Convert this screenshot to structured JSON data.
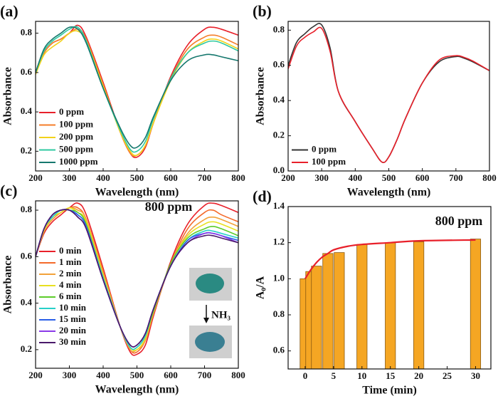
{
  "chart_data": [
    {
      "type": "line",
      "panel_label": "(a)",
      "x_label": "Wavelength (nm)",
      "y_label": "Absorbance",
      "xlim": [
        200,
        800
      ],
      "xticks": [
        200,
        300,
        400,
        500,
        600,
        700,
        800
      ],
      "ylim": [
        0.1,
        0.86
      ],
      "yticks": [
        0.2,
        0.4,
        0.6,
        0.8
      ],
      "legend": "lower left",
      "x": [
        200,
        225,
        250,
        275,
        300,
        325,
        350,
        400,
        450,
        480,
        500,
        525,
        550,
        600,
        650,
        700,
        725,
        750,
        800
      ],
      "series": [
        {
          "name": "0 ppm",
          "color": "#e8202a",
          "values": [
            0.6,
            0.7,
            0.75,
            0.77,
            0.8,
            0.84,
            0.78,
            0.55,
            0.3,
            0.19,
            0.17,
            0.22,
            0.35,
            0.58,
            0.74,
            0.82,
            0.83,
            0.82,
            0.79
          ]
        },
        {
          "name": "100 ppm",
          "color": "#f47d2a",
          "values": [
            0.6,
            0.7,
            0.75,
            0.77,
            0.8,
            0.82,
            0.77,
            0.54,
            0.3,
            0.19,
            0.18,
            0.23,
            0.35,
            0.57,
            0.72,
            0.78,
            0.79,
            0.78,
            0.74
          ]
        },
        {
          "name": "200 ppm",
          "color": "#f2d21b",
          "values": [
            0.59,
            0.69,
            0.73,
            0.76,
            0.8,
            0.81,
            0.76,
            0.53,
            0.3,
            0.2,
            0.18,
            0.23,
            0.35,
            0.56,
            0.7,
            0.76,
            0.77,
            0.76,
            0.72
          ]
        },
        {
          "name": "500 ppm",
          "color": "#2fc9a0",
          "values": [
            0.6,
            0.71,
            0.76,
            0.79,
            0.82,
            0.83,
            0.76,
            0.52,
            0.31,
            0.21,
            0.2,
            0.25,
            0.37,
            0.57,
            0.7,
            0.75,
            0.76,
            0.75,
            0.71
          ]
        },
        {
          "name": "1000 ppm",
          "color": "#16786e",
          "values": [
            0.6,
            0.72,
            0.77,
            0.8,
            0.83,
            0.82,
            0.75,
            0.52,
            0.32,
            0.23,
            0.22,
            0.27,
            0.38,
            0.56,
            0.66,
            0.69,
            0.69,
            0.68,
            0.66
          ]
        }
      ]
    },
    {
      "type": "line",
      "panel_label": "(b)",
      "x_label": "Wavelength (nm)",
      "y_label": "Absorbance",
      "xlim": [
        200,
        800
      ],
      "xticks": [
        200,
        300,
        400,
        500,
        600,
        700,
        800
      ],
      "ylim": [
        0,
        0.85
      ],
      "yticks": [
        {
          "value": 0,
          "label": "0.0"
        },
        0.2,
        0.4,
        0.6,
        0.8
      ],
      "legend": "lower left",
      "x": [
        200,
        225,
        250,
        275,
        300,
        325,
        350,
        400,
        450,
        480,
        500,
        525,
        550,
        600,
        650,
        700,
        725,
        750,
        800
      ],
      "series": [
        {
          "name": "0 ppm",
          "color": "#333333",
          "values": [
            0.6,
            0.73,
            0.78,
            0.82,
            0.83,
            0.7,
            0.45,
            0.28,
            0.13,
            0.05,
            0.08,
            0.18,
            0.3,
            0.5,
            0.62,
            0.65,
            0.64,
            0.62,
            0.57
          ]
        },
        {
          "name": "100 ppm",
          "color": "#e8202a",
          "values": [
            0.58,
            0.71,
            0.76,
            0.79,
            0.81,
            0.68,
            0.45,
            0.28,
            0.13,
            0.05,
            0.08,
            0.18,
            0.3,
            0.5,
            0.63,
            0.655,
            0.645,
            0.625,
            0.57
          ]
        }
      ]
    },
    {
      "type": "line",
      "panel_label": "(c)",
      "x_label": "Wavelength (nm)",
      "y_label": "Absorbance",
      "xlim": [
        200,
        800
      ],
      "xticks": [
        200,
        300,
        400,
        500,
        600,
        700,
        800
      ],
      "ylim": [
        0.12,
        0.84
      ],
      "yticks": [
        0.2,
        0.4,
        0.6,
        0.8
      ],
      "legend": "center left",
      "annotations": [
        "800 ppm",
        "NH₃"
      ],
      "x": [
        200,
        225,
        250,
        275,
        300,
        325,
        350,
        400,
        450,
        480,
        500,
        525,
        550,
        600,
        650,
        700,
        725,
        750,
        800
      ],
      "series": [
        {
          "name": "0 min",
          "color": "#e8202a",
          "values": [
            0.6,
            0.7,
            0.75,
            0.78,
            0.81,
            0.83,
            0.78,
            0.55,
            0.3,
            0.19,
            0.18,
            0.22,
            0.35,
            0.58,
            0.74,
            0.82,
            0.83,
            0.82,
            0.79
          ]
        },
        {
          "name": "1 min",
          "color": "#f46a2a",
          "values": [
            0.6,
            0.71,
            0.76,
            0.79,
            0.81,
            0.81,
            0.76,
            0.54,
            0.3,
            0.2,
            0.19,
            0.24,
            0.36,
            0.57,
            0.72,
            0.79,
            0.8,
            0.78,
            0.75
          ]
        },
        {
          "name": "2 min",
          "color": "#f2a23a",
          "values": [
            0.6,
            0.71,
            0.76,
            0.79,
            0.81,
            0.8,
            0.76,
            0.53,
            0.3,
            0.2,
            0.2,
            0.24,
            0.36,
            0.57,
            0.7,
            0.76,
            0.77,
            0.76,
            0.73
          ]
        },
        {
          "name": "4 min",
          "color": "#e8e020",
          "values": [
            0.6,
            0.71,
            0.77,
            0.79,
            0.81,
            0.79,
            0.75,
            0.52,
            0.3,
            0.21,
            0.2,
            0.25,
            0.37,
            0.57,
            0.69,
            0.74,
            0.75,
            0.74,
            0.71
          ]
        },
        {
          "name": "6 min",
          "color": "#5ccc2a",
          "values": [
            0.6,
            0.72,
            0.77,
            0.8,
            0.8,
            0.79,
            0.74,
            0.51,
            0.3,
            0.21,
            0.21,
            0.26,
            0.37,
            0.57,
            0.68,
            0.72,
            0.73,
            0.72,
            0.69
          ]
        },
        {
          "name": "10 min",
          "color": "#27d0c8",
          "values": [
            0.6,
            0.72,
            0.77,
            0.8,
            0.8,
            0.78,
            0.73,
            0.51,
            0.3,
            0.21,
            0.21,
            0.26,
            0.38,
            0.56,
            0.67,
            0.71,
            0.71,
            0.7,
            0.68
          ]
        },
        {
          "name": "15 min",
          "color": "#2a5ee8",
          "values": [
            0.6,
            0.72,
            0.78,
            0.8,
            0.8,
            0.78,
            0.73,
            0.5,
            0.3,
            0.22,
            0.22,
            0.27,
            0.38,
            0.56,
            0.67,
            0.7,
            0.7,
            0.69,
            0.67
          ]
        },
        {
          "name": "20 min",
          "color": "#8a3ae8",
          "values": [
            0.6,
            0.72,
            0.78,
            0.8,
            0.8,
            0.77,
            0.72,
            0.5,
            0.3,
            0.22,
            0.22,
            0.27,
            0.38,
            0.56,
            0.66,
            0.7,
            0.7,
            0.69,
            0.66
          ]
        },
        {
          "name": "30 min",
          "color": "#4a1a6a",
          "values": [
            0.6,
            0.72,
            0.78,
            0.8,
            0.8,
            0.77,
            0.72,
            0.5,
            0.3,
            0.22,
            0.22,
            0.27,
            0.38,
            0.56,
            0.66,
            0.69,
            0.69,
            0.68,
            0.66
          ]
        }
      ]
    },
    {
      "type": "bar",
      "panel_label": "(d)",
      "x_label": "Time (min)",
      "y_label": "A₀/A",
      "xlim": [
        -3,
        32.7
      ],
      "xticks": [
        0,
        5,
        10,
        15,
        20,
        25,
        30
      ],
      "ylim": [
        0.5,
        1.4
      ],
      "yticks": [
        0.6,
        0.8,
        {
          "value": 1,
          "label": "1.0"
        },
        1.2,
        1.4
      ],
      "annotations": [
        "800 ppm"
      ],
      "x": [
        0,
        1,
        2,
        4,
        6,
        10,
        15,
        20,
        30
      ],
      "values": [
        1.0,
        1.04,
        1.07,
        1.14,
        1.145,
        1.19,
        1.2,
        1.205,
        1.22
      ],
      "color": "#f5a623",
      "fit": {
        "color": "#e8202a",
        "x": [
          0,
          1,
          2,
          3,
          4,
          5,
          7.5,
          10,
          15,
          20,
          30
        ],
        "values": [
          1.0,
          1.05,
          1.09,
          1.12,
          1.14,
          1.16,
          1.18,
          1.19,
          1.2,
          1.21,
          1.215
        ]
      }
    }
  ]
}
